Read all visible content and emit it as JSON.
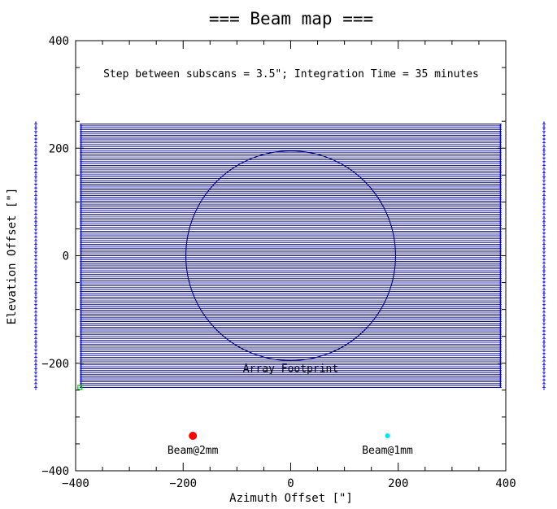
{
  "chart_data": {
    "type": "line",
    "title": "=== Beam map ===",
    "subtitle": "Step between subscans = 3.5\"; Integration Time = 35 minutes",
    "xlabel": "Azimuth Offset [\"]",
    "ylabel": "Elevation Offset [\"]",
    "xlim": [
      -400,
      400
    ],
    "ylim": [
      -400,
      400
    ],
    "x_ticks": [
      -400,
      -200,
      0,
      200,
      400
    ],
    "y_ticks": [
      -400,
      -200,
      0,
      200,
      400
    ],
    "x_tick_labels": [
      "−400",
      "−200",
      "0",
      "200",
      "400"
    ],
    "y_tick_labels": [
      "−400",
      "−200",
      "0",
      "200",
      "400"
    ],
    "grid": false,
    "subscans": {
      "x_start": -390,
      "x_end": 390,
      "y_min": -245,
      "y_max": 245,
      "step": 3.5,
      "color": "#000080"
    },
    "footprint": {
      "label": "Array Footprint",
      "center": [
        0,
        0
      ],
      "radius": 195,
      "color": "#000080"
    },
    "beams": [
      {
        "label": "Beam@2mm",
        "x": -182,
        "y": -335,
        "color": "#ff0000"
      },
      {
        "label": "Beam@1mm",
        "x": 180,
        "y": -335,
        "color": "#00e5ee"
      }
    ],
    "start_marker": {
      "x": -392,
      "y": -245,
      "color": "#00c000"
    },
    "line_color": "#0000ff"
  }
}
